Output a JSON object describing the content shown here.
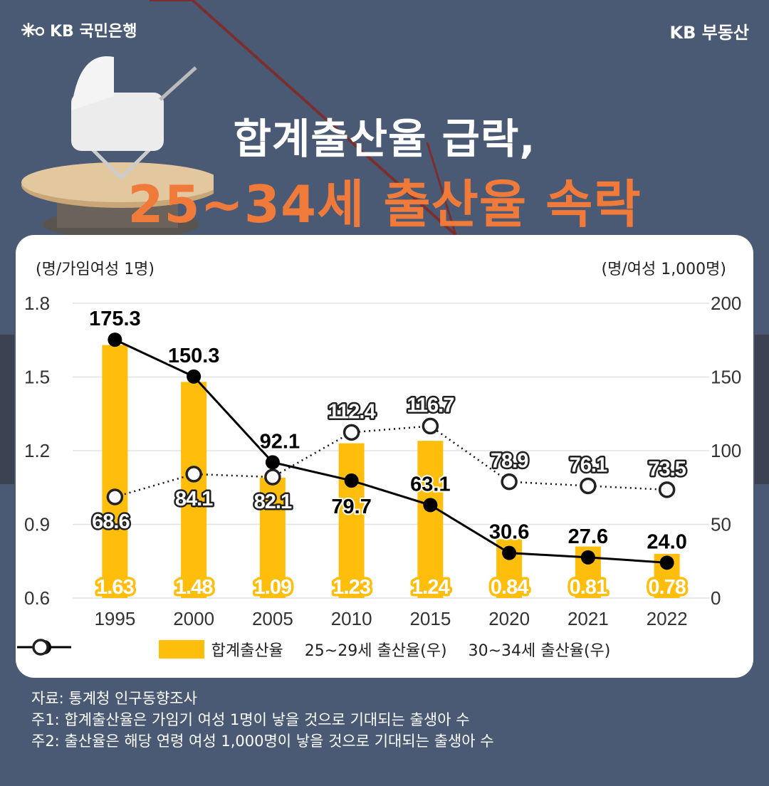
{
  "header": {
    "bank_brand": "KB 국민은행",
    "realestate_brand": "KB 부동산",
    "title_line1": "합계출산율 급락,",
    "title_line2": "25~34세 출산율 속락"
  },
  "colors": {
    "background": "#4a5a74",
    "bar": "#ffbe0b",
    "bar_label": "#ffbe0b",
    "line_solid": "#000000",
    "line_dotted": "#000000",
    "title_accent": "#f07a3a"
  },
  "chart_data": {
    "type": "bar+line",
    "categories": [
      "1995",
      "2000",
      "2005",
      "2010",
      "2015",
      "2020",
      "2021",
      "2022"
    ],
    "left_axis": {
      "label": "(명/가임여성 1명)",
      "ticks": [
        "1.8",
        "1.5",
        "1.2",
        "0.9",
        "0.6"
      ],
      "ylim": [
        0.6,
        1.8
      ]
    },
    "right_axis": {
      "label": "(명/여성 1,000명)",
      "ticks": [
        "200",
        "150",
        "100",
        "50",
        "0"
      ],
      "ylim": [
        0,
        200
      ]
    },
    "series": [
      {
        "name": "합계출산율",
        "type": "bar",
        "axis": "left",
        "values": [
          1.63,
          1.48,
          1.09,
          1.23,
          1.24,
          0.84,
          0.81,
          0.78
        ],
        "labels": [
          "1.63",
          "1.48",
          "1.09",
          "1.23",
          "1.24",
          "0.84",
          "0.81",
          "0.78"
        ]
      },
      {
        "name": "25~29세 출산율(우)",
        "type": "line",
        "axis": "right",
        "style": "solid",
        "values": [
          175.3,
          150.3,
          92.1,
          79.7,
          63.1,
          30.6,
          27.6,
          24.0
        ],
        "labels": [
          "175.3",
          "150.3",
          "92.1",
          "79.7",
          "63.1",
          "30.6",
          "27.6",
          "24.0"
        ]
      },
      {
        "name": "30~34세 출산율(우)",
        "type": "line",
        "axis": "right",
        "style": "dotted",
        "values": [
          68.6,
          84.1,
          82.1,
          112.4,
          116.7,
          78.9,
          76.1,
          73.5
        ],
        "labels": [
          "68.6",
          "84.1",
          "82.1",
          "112.4",
          "116.7",
          "78.9",
          "76.1",
          "73.5"
        ]
      }
    ],
    "grid": "horizontal",
    "legend": "bottom"
  },
  "notes": [
    "자료: 통계청 인구동향조사",
    "주1: 합계출산율은 가임기 여성 1명이 낳을 것으로 기대되는 출생아 수",
    "주2: 출산율은 해당 연령 여성 1,000명이 낳을 것으로 기대되는 출생아 수"
  ]
}
